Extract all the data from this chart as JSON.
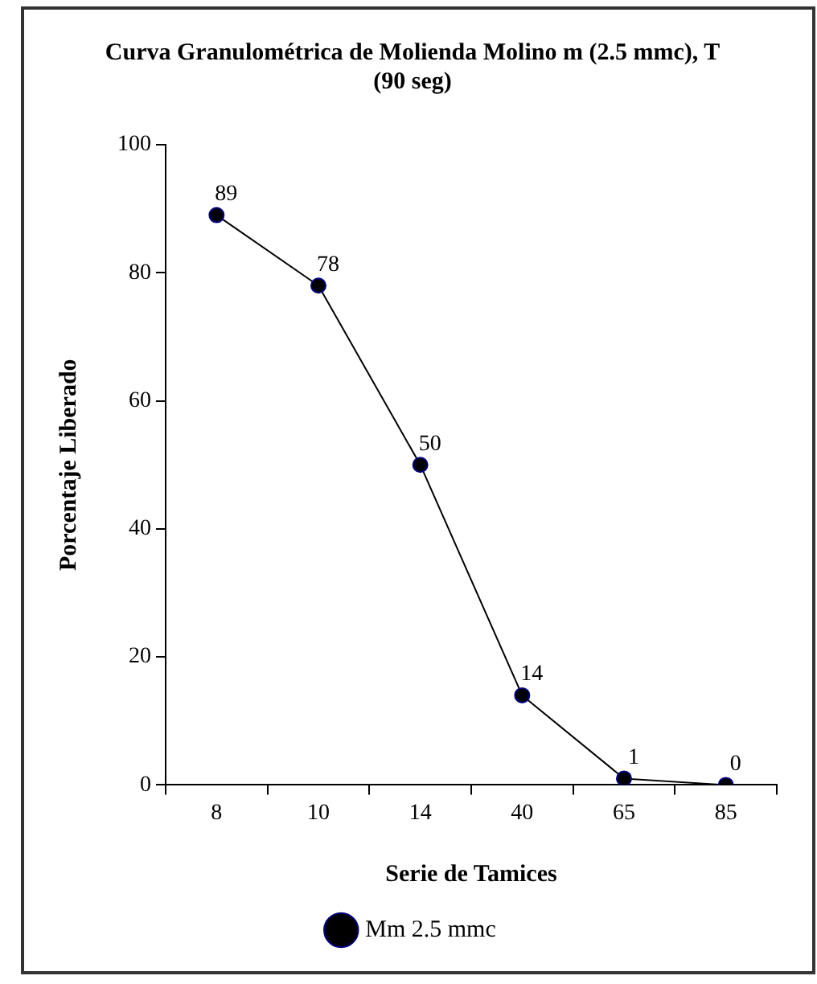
{
  "chart_data": {
    "type": "line",
    "title": "Curva Granulométrica de Molienda Molino m (2.5 mmc), T (90 seg)",
    "xlabel": "Serie de Tamices",
    "ylabel": "Porcentaje Liberado",
    "categories": [
      "8",
      "10",
      "14",
      "40",
      "65",
      "85"
    ],
    "series": [
      {
        "name": "Mm 2.5 mmc",
        "color": "#000000",
        "values": [
          89,
          78,
          50,
          14,
          1,
          0
        ]
      }
    ],
    "ylim": [
      0,
      100
    ],
    "yticks": [
      0,
      20,
      40,
      60,
      80,
      100
    ],
    "data_labels": true,
    "marker": "circle",
    "line_style": "solid",
    "legend": "bottom"
  }
}
